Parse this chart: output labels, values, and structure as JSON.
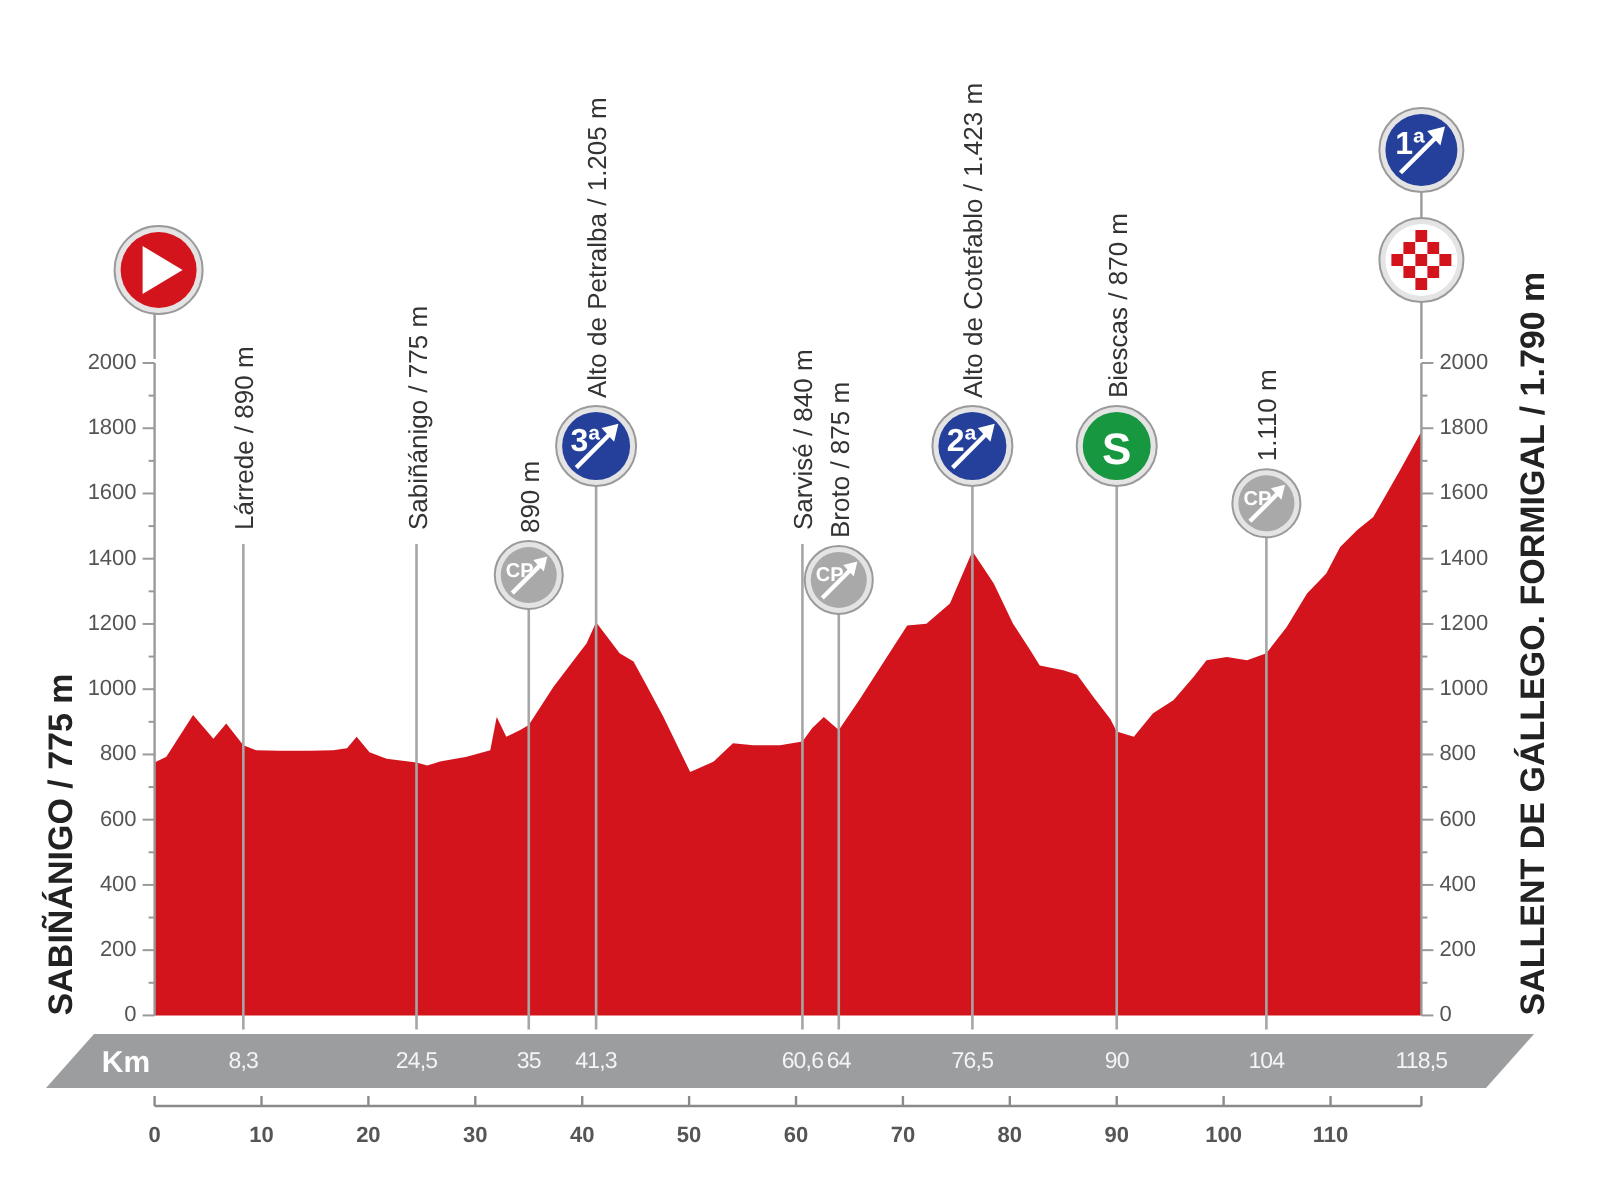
{
  "chart_data": {
    "type": "area",
    "color": "#d3141c",
    "ylabel": "SABIÑÁNIGO / 775 m",
    "y2label": "SALLENT DE GÁLLEGO. FORMIGAL / 1.790 m",
    "x2label": "Km",
    "x": [
      0,
      1.1,
      3.6,
      5.5,
      6.7,
      8.3,
      9.5,
      11.7,
      14.5,
      16.7,
      18,
      18.9,
      20.1,
      21.7,
      24.5,
      25.5,
      26.7,
      29.2,
      31.4,
      32,
      32.9,
      34.2,
      35,
      37.3,
      39.2,
      40.4,
      41.3,
      43.5,
      44.8,
      46.1,
      47.6,
      50.1,
      52.3,
      54.1,
      56,
      58.5,
      60.6,
      61.5,
      62.6,
      64,
      65.9,
      68.5,
      70.4,
      72.2,
      74.4,
      76.5,
      78.5,
      80.3,
      81.9,
      82.8,
      85,
      86.3,
      87.8,
      89.4,
      90,
      91.6,
      93.4,
      95.3,
      97.2,
      98.4,
      100.3,
      102.2,
      104,
      105.9,
      107.8,
      109.6,
      110.9,
      112.5,
      114,
      116.5,
      118.5
    ],
    "values": [
      775,
      793,
      921,
      848,
      895,
      828,
      813,
      811,
      811,
      813,
      819,
      854,
      807,
      787,
      775,
      766,
      778,
      793,
      813,
      915,
      854,
      875,
      890,
      1007,
      1089,
      1140,
      1205,
      1110,
      1085,
      1007,
      915,
      746,
      778,
      834,
      828,
      828,
      840,
      880,
      915,
      875,
      966,
      1099,
      1195,
      1201,
      1263,
      1423,
      1324,
      1201,
      1120,
      1073,
      1058,
      1044,
      977,
      909,
      870,
      854,
      926,
      966,
      1038,
      1089,
      1099,
      1089,
      1110,
      1191,
      1293,
      1355,
      1436,
      1488,
      1528,
      1671,
      1790
    ],
    "xlim": [
      0,
      118.5
    ],
    "xticks": [
      0,
      10,
      20,
      30,
      40,
      50,
      60,
      70,
      80,
      90,
      100,
      110,
      {
        "value": 118.5,
        "label": null
      }
    ],
    "x2lim": [
      0,
      118.5
    ],
    "x2ticks": [
      {
        "value": 8.3,
        "label": "8,3"
      },
      {
        "value": 24.5,
        "label": "24,5"
      },
      35,
      {
        "value": 41.3,
        "label": "41,3"
      },
      {
        "value": 60.6,
        "label": "60,6"
      },
      64,
      {
        "value": 76.5,
        "label": "76,5"
      },
      90,
      104,
      {
        "value": 118.5,
        "label": "118,5"
      }
    ],
    "ylim": [
      0,
      2000
    ],
    "yticks": [
      0,
      {
        "value": 100,
        "label": null
      },
      200,
      {
        "value": 300,
        "label": null
      },
      400,
      {
        "value": 500,
        "label": null
      },
      600,
      {
        "value": 700,
        "label": null
      },
      800,
      {
        "value": 900,
        "label": null
      },
      1000,
      {
        "value": 1100,
        "label": null
      },
      1200,
      {
        "value": 1300,
        "label": null
      },
      1400,
      {
        "value": 1500,
        "label": null
      },
      1600,
      {
        "value": 1700,
        "label": null
      },
      1800,
      {
        "value": 1900,
        "label": null
      },
      2000
    ],
    "y2lim": [
      0,
      2000
    ],
    "y2ticks": [
      0,
      {
        "value": 100,
        "label": null
      },
      200,
      {
        "value": 300,
        "label": null
      },
      400,
      {
        "value": 500,
        "label": null
      },
      600,
      {
        "value": 700,
        "label": null
      },
      800,
      {
        "value": 900,
        "label": null
      },
      1000,
      {
        "value": 1100,
        "label": null
      },
      1200,
      {
        "value": 1300,
        "label": null
      },
      1400,
      {
        "value": 1500,
        "label": null
      },
      1600,
      {
        "value": 1700,
        "label": null
      },
      1800,
      {
        "value": 1900,
        "label": null
      },
      2000
    ],
    "ref_lines": [
      {
        "axis": "x",
        "value": 8.3,
        "label": "Lárrede / 890 m",
        "color": "#a6a6a6"
      },
      {
        "axis": "x",
        "value": 24.5,
        "label": "Sabiñánigo / 775 m",
        "color": "#a6a6a6"
      },
      {
        "axis": "x",
        "value": 35,
        "label": "890 m",
        "color": "#a6a6a6"
      },
      {
        "axis": "x",
        "value": 41.3,
        "label": "Alto de Petralba / 1.205 m",
        "color": "#a6a6a6"
      },
      {
        "axis": "x",
        "value": 60.6,
        "label": "Sarvisé / 840 m",
        "color": "#a6a6a6"
      },
      {
        "axis": "x",
        "value": 64,
        "label": "Broto / 875 m",
        "color": "#a6a6a6"
      },
      {
        "axis": "x",
        "value": 76.5,
        "label": "Alto de Cotefablo / 1.423 m",
        "color": "#a6a6a6"
      },
      {
        "axis": "x",
        "value": 90,
        "label": "Biescas / 870 m",
        "color": "#a6a6a6"
      },
      {
        "axis": "x",
        "value": 104,
        "label": "1.110 m",
        "color": "#a6a6a6"
      }
    ],
    "annotations": [
      "CP",
      "3ª",
      "CP",
      "2ª",
      "S",
      "CP",
      "1ª"
    ]
  }
}
